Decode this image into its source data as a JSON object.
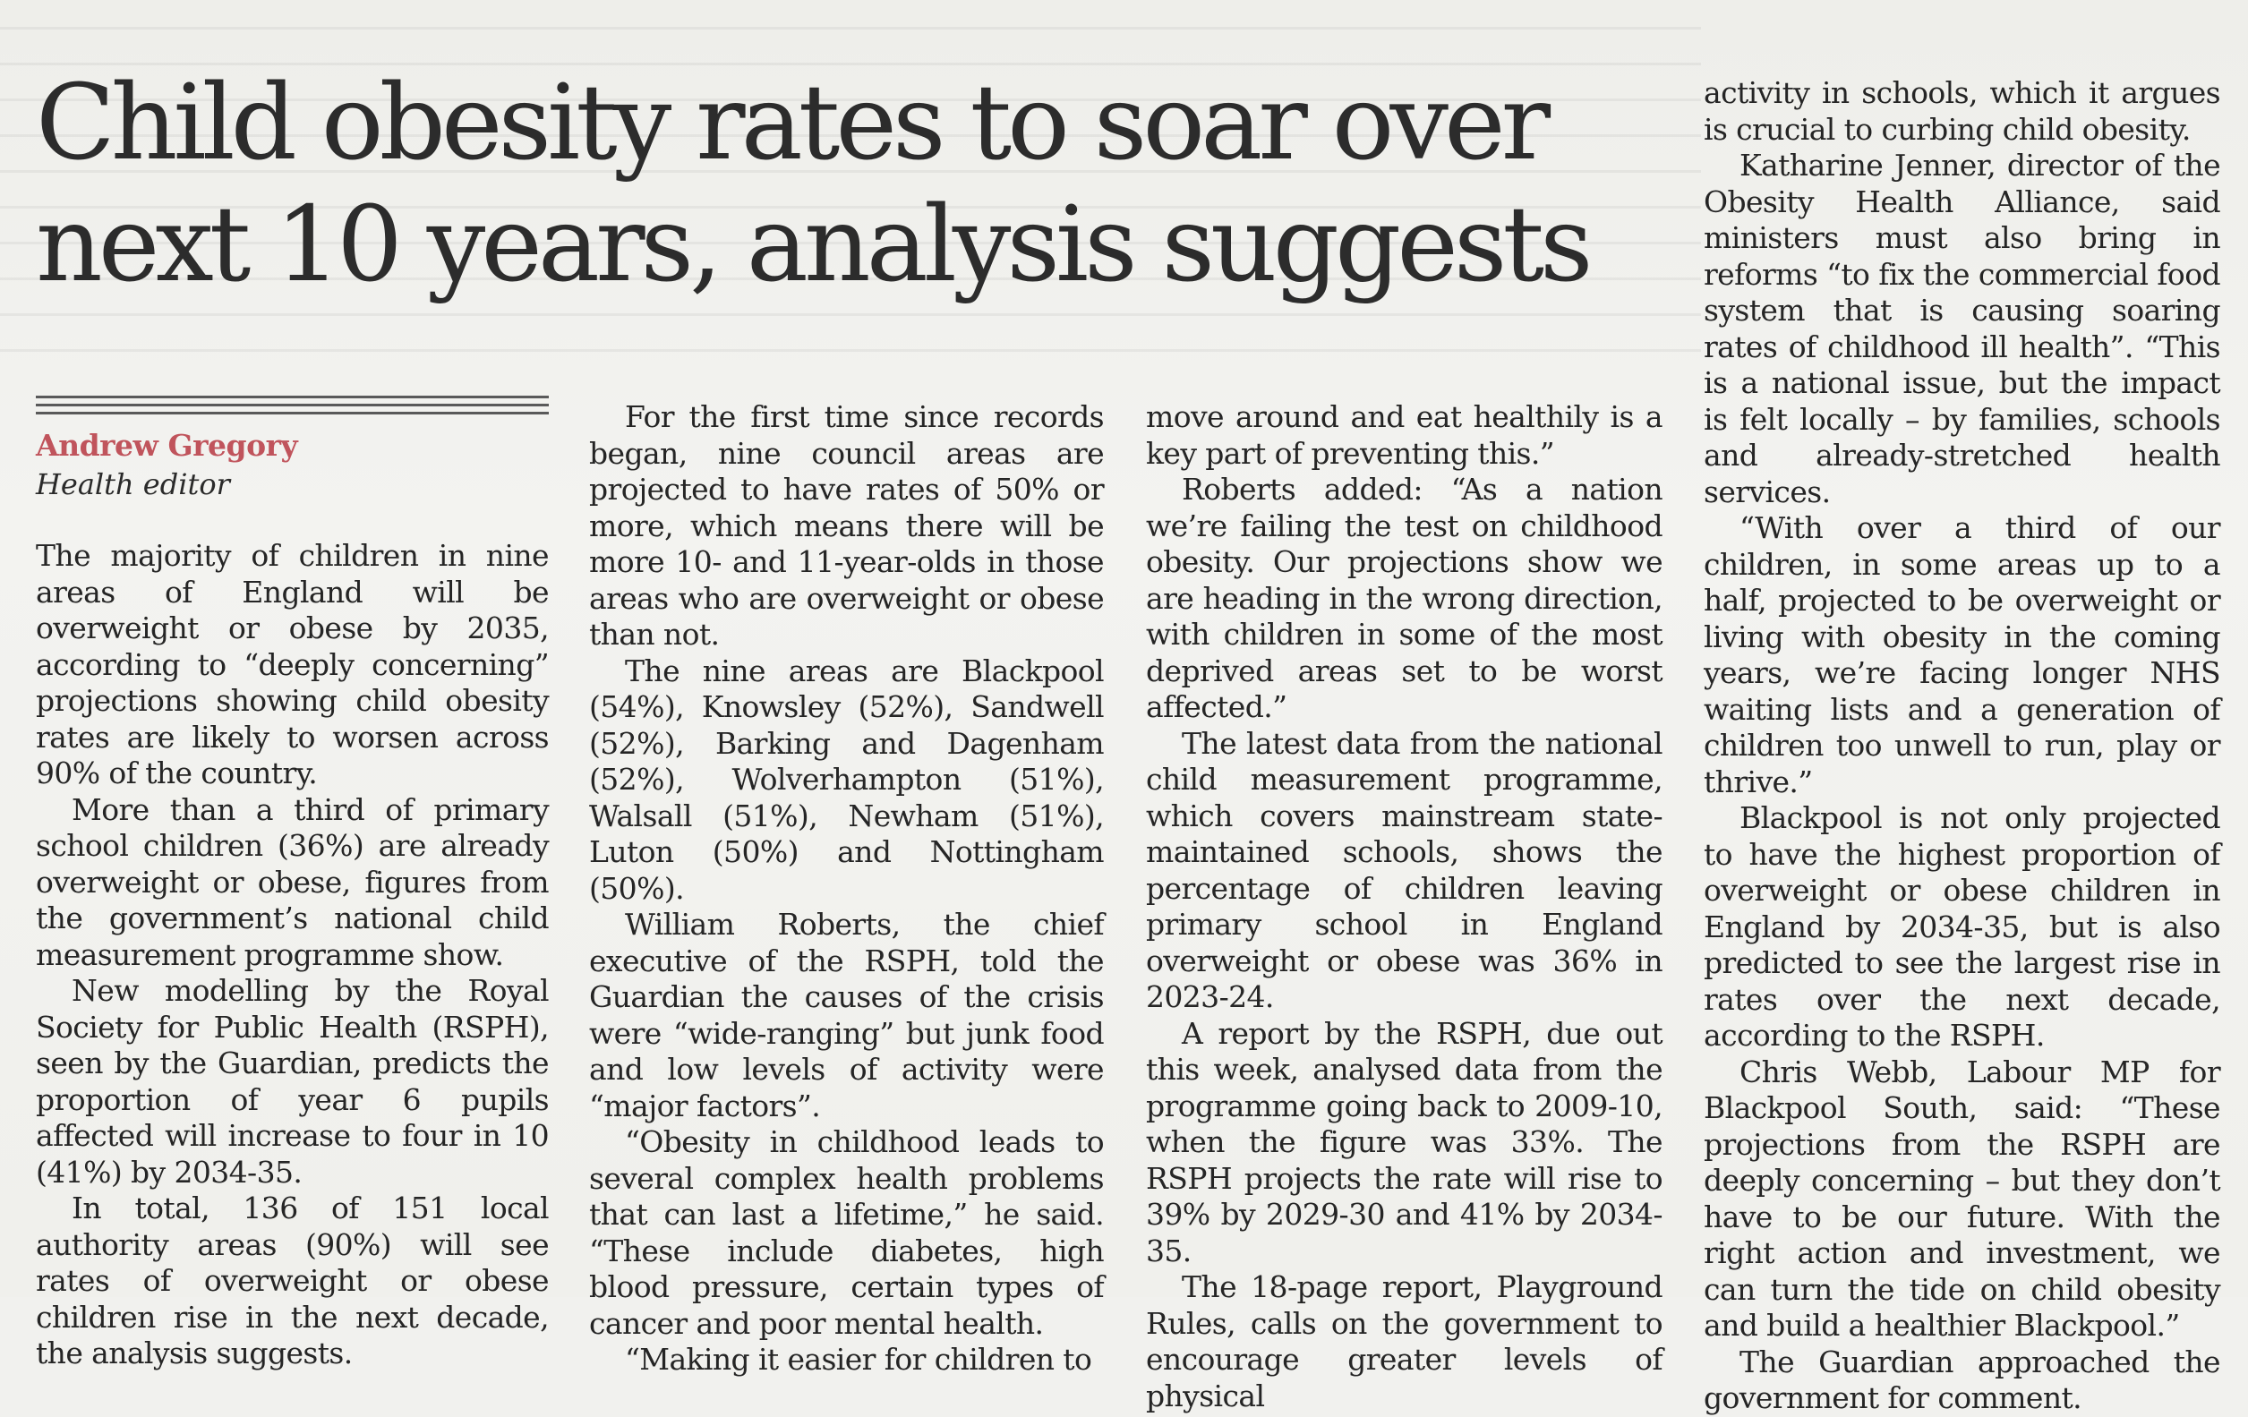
{
  "article": {
    "headline": "Child obesity rates to soar over\nnext 10 years, analysis suggests",
    "author": "Andrew Gregory",
    "author_role": "Health editor",
    "columns": [
      {
        "paragraphs": [
          "The majority of children in nine areas of England will be overweight or obese by 2035, according to “deeply concerning” projections showing child obesity rates are likely to worsen across 90% of the country.",
          "More than a third of primary school children (36%) are already overweight or obese, figures from the government’s national child measurement programme show.",
          "New modelling by the Royal Society for Public Health (RSPH), seen by the Guardian, predicts the proportion of year 6 pupils affected will increase to four in 10 (41%) by 2034-35.",
          "In total, 136 of 151 local authority areas (90%) will see rates of overweight or obese children rise in the next decade, the analysis suggests."
        ]
      },
      {
        "paragraphs": [
          "For the first time since records began, nine council areas are projected to have rates of 50% or more, which means there will be more 10- and 11-year-olds in those areas who are overweight or obese than not.",
          "The nine areas are Blackpool (54%), Knowsley (52%), Sandwell (52%), Barking and Dagenham (52%), Wolverhampton (51%), Walsall (51%), Newham (51%), Luton (50%) and Nottingham (50%).",
          "William Roberts, the chief executive of the RSPH, told the Guardian the causes of the crisis were “wide-ranging” but junk food and low levels of activity were “major factors”.",
          "“Obesity in childhood leads to several complex health problems that can last a lifetime,” he said. “These include diabetes, high blood pressure, certain types of cancer and poor mental health.",
          "“Making it easier for children to"
        ]
      },
      {
        "paragraphs": [
          "move around and eat healthily is a key part of preventing this.”",
          "Roberts added: “As a nation we’re failing the test on childhood obesity. Our projections show we are heading in the wrong direction, with children in some of the most deprived areas set to be worst affected.”",
          "The latest data from the national child measurement programme, which covers mainstream state-maintained schools, shows the percentage of children leaving primary school in England overweight or obese was 36% in 2023-24.",
          "A report by the RSPH, due out this week, analysed data from the programme going back to 2009-10, when the figure was 33%. The RSPH projects the rate will rise to 39% by 2029-30 and 41% by 2034-35.",
          "The 18-page report, Playground Rules, calls on the government to encourage greater levels of physical"
        ]
      },
      {
        "paragraphs": [
          "activity in schools, which it argues is crucial to curbing child obesity.",
          "Katharine Jenner, director of the Obesity Health Alliance, said ministers must also bring in reforms “to fix the commercial food system that is causing soaring rates of childhood ill health”. “This is a national issue, but the impact is felt locally – by families, schools and already-stretched health services.",
          "“With over a third of our children, in some areas up to a half, projected to be overweight or living with obesity in the coming years, we’re facing longer NHS waiting lists and a generation of children too unwell to run, play or thrive.”",
          "Blackpool is not only projected to have the highest proportion of overweight or obese children in England by 2034-35, but is also predicted to see the largest rise in rates over the next decade, according to the RSPH.",
          "Chris Webb, Labour MP for Blackpool South, said: “These projections from the RSPH are deeply concerning – but they don’t have to be our future. With the right action and investment, we can turn the tide on child obesity and build a healthier Blackpool.”",
          "The Guardian approached the government for comment."
        ]
      }
    ]
  }
}
